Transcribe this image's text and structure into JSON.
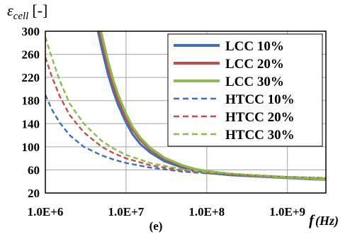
{
  "chart_data": {
    "type": "line",
    "title": "",
    "ylabel_symbol": "ε",
    "ylabel_sub": "cell",
    "ylabel_unit": "[-]",
    "xlabel_symbol": "f",
    "xlabel_unit": "(Hz)",
    "panel_label": "(e)",
    "x_scale": "log",
    "xlim": [
      1000000,
      3000000000
    ],
    "ylim": [
      20,
      300
    ],
    "x_ticks": [
      1000000,
      10000000,
      100000000,
      1000000000
    ],
    "x_tick_labels": [
      "1.0E+6",
      "1.0E+7",
      "1.0E+8",
      "1.0E+9"
    ],
    "y_ticks": [
      20,
      60,
      100,
      140,
      180,
      220,
      260,
      300
    ],
    "y_tick_labels": [
      "20",
      "60",
      "100",
      "140",
      "180",
      "220",
      "260",
      "300"
    ],
    "grid": true,
    "legend_position": "top-right",
    "series": [
      {
        "name": "LCC 10%",
        "color": "#3f6fb6",
        "style": "solid",
        "x": [
          4500000,
          5000000,
          6000000,
          7000000,
          8000000,
          10000000,
          12000000,
          15000000,
          20000000,
          30000000,
          50000000,
          70000000,
          100000000,
          200000000,
          500000000,
          1000000000,
          2000000000,
          3000000000
        ],
        "y": [
          300,
          270,
          225,
          195,
          172,
          142,
          122,
          105,
          90,
          75,
          64,
          59,
          55,
          51,
          48,
          46,
          44,
          43
        ]
      },
      {
        "name": "LCC 20%",
        "color": "#c0504d",
        "style": "solid",
        "x": [
          4700000,
          5000000,
          6000000,
          7000000,
          8000000,
          10000000,
          12000000,
          15000000,
          20000000,
          30000000,
          50000000,
          70000000,
          100000000,
          200000000,
          500000000,
          1000000000,
          2000000000,
          3000000000
        ],
        "y": [
          300,
          285,
          238,
          205,
          182,
          150,
          130,
          112,
          95,
          79,
          67,
          61,
          57,
          52,
          49,
          47,
          45,
          44
        ]
      },
      {
        "name": "LCC 30%",
        "color": "#8dba4a",
        "style": "solid",
        "x": [
          4900000,
          5000000,
          6000000,
          7000000,
          8000000,
          10000000,
          12000000,
          15000000,
          20000000,
          30000000,
          50000000,
          70000000,
          100000000,
          200000000,
          500000000,
          1000000000,
          2000000000,
          3000000000
        ],
        "y": [
          300,
          295,
          248,
          214,
          190,
          157,
          135,
          116,
          98,
          81,
          68,
          62,
          58,
          53,
          49,
          47,
          45,
          43
        ]
      },
      {
        "name": "HTCC 10%",
        "color": "#3f6fb6",
        "style": "dashed",
        "x": [
          1000000,
          1200000,
          1500000,
          2000000,
          3000000,
          5000000,
          7000000,
          10000000,
          20000000,
          50000000,
          100000000,
          300000000,
          1000000000,
          3000000000
        ],
        "y": [
          190,
          165,
          142,
          120,
          100,
          85,
          78,
          72,
          64,
          57,
          54,
          51,
          48,
          46
        ]
      },
      {
        "name": "HTCC 20%",
        "color": "#c0504d",
        "style": "dashed",
        "x": [
          1000000,
          1200000,
          1500000,
          2000000,
          3000000,
          5000000,
          7000000,
          10000000,
          20000000,
          50000000,
          100000000,
          300000000,
          1000000000,
          3000000000
        ],
        "y": [
          255,
          222,
          188,
          155,
          125,
          100,
          89,
          80,
          68,
          59,
          55,
          51,
          48,
          46
        ]
      },
      {
        "name": "HTCC 30%",
        "color": "#8dba4a",
        "style": "dashed",
        "x": [
          1000000,
          1200000,
          1500000,
          2000000,
          3000000,
          5000000,
          7000000,
          10000000,
          20000000,
          50000000,
          100000000,
          300000000,
          1000000000,
          3000000000
        ],
        "y": [
          290,
          255,
          215,
          175,
          140,
          110,
          97,
          86,
          72,
          61,
          56,
          52,
          48,
          46
        ]
      }
    ]
  }
}
